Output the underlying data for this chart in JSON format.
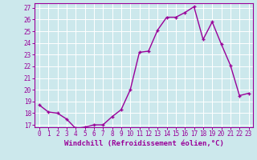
{
  "x": [
    0,
    1,
    2,
    3,
    4,
    5,
    6,
    7,
    8,
    9,
    10,
    11,
    12,
    13,
    14,
    15,
    16,
    17,
    18,
    19,
    20,
    21,
    22,
    23
  ],
  "y": [
    18.7,
    18.1,
    18.0,
    17.5,
    16.7,
    16.8,
    17.0,
    17.0,
    17.7,
    18.3,
    20.0,
    23.2,
    23.3,
    25.1,
    26.2,
    26.2,
    26.6,
    27.1,
    24.3,
    25.8,
    23.9,
    22.1,
    19.5,
    19.7
  ],
  "line_color": "#990099",
  "marker": "+",
  "marker_size": 3.5,
  "marker_linewidth": 1.0,
  "line_width": 1.0,
  "bg_color": "#cce8ec",
  "grid_color": "#ffffff",
  "xlabel": "Windchill (Refroidissement éolien,°C)",
  "xlim": [
    -0.5,
    23.5
  ],
  "ylim": [
    16.8,
    27.4
  ],
  "yticks": [
    17,
    18,
    19,
    20,
    21,
    22,
    23,
    24,
    25,
    26,
    27
  ],
  "xticks": [
    0,
    1,
    2,
    3,
    4,
    5,
    6,
    7,
    8,
    9,
    10,
    11,
    12,
    13,
    14,
    15,
    16,
    17,
    18,
    19,
    20,
    21,
    22,
    23
  ],
  "tick_fontsize": 5.5,
  "xlabel_fontsize": 6.5,
  "label_color": "#990099",
  "spine_color": "#990099"
}
